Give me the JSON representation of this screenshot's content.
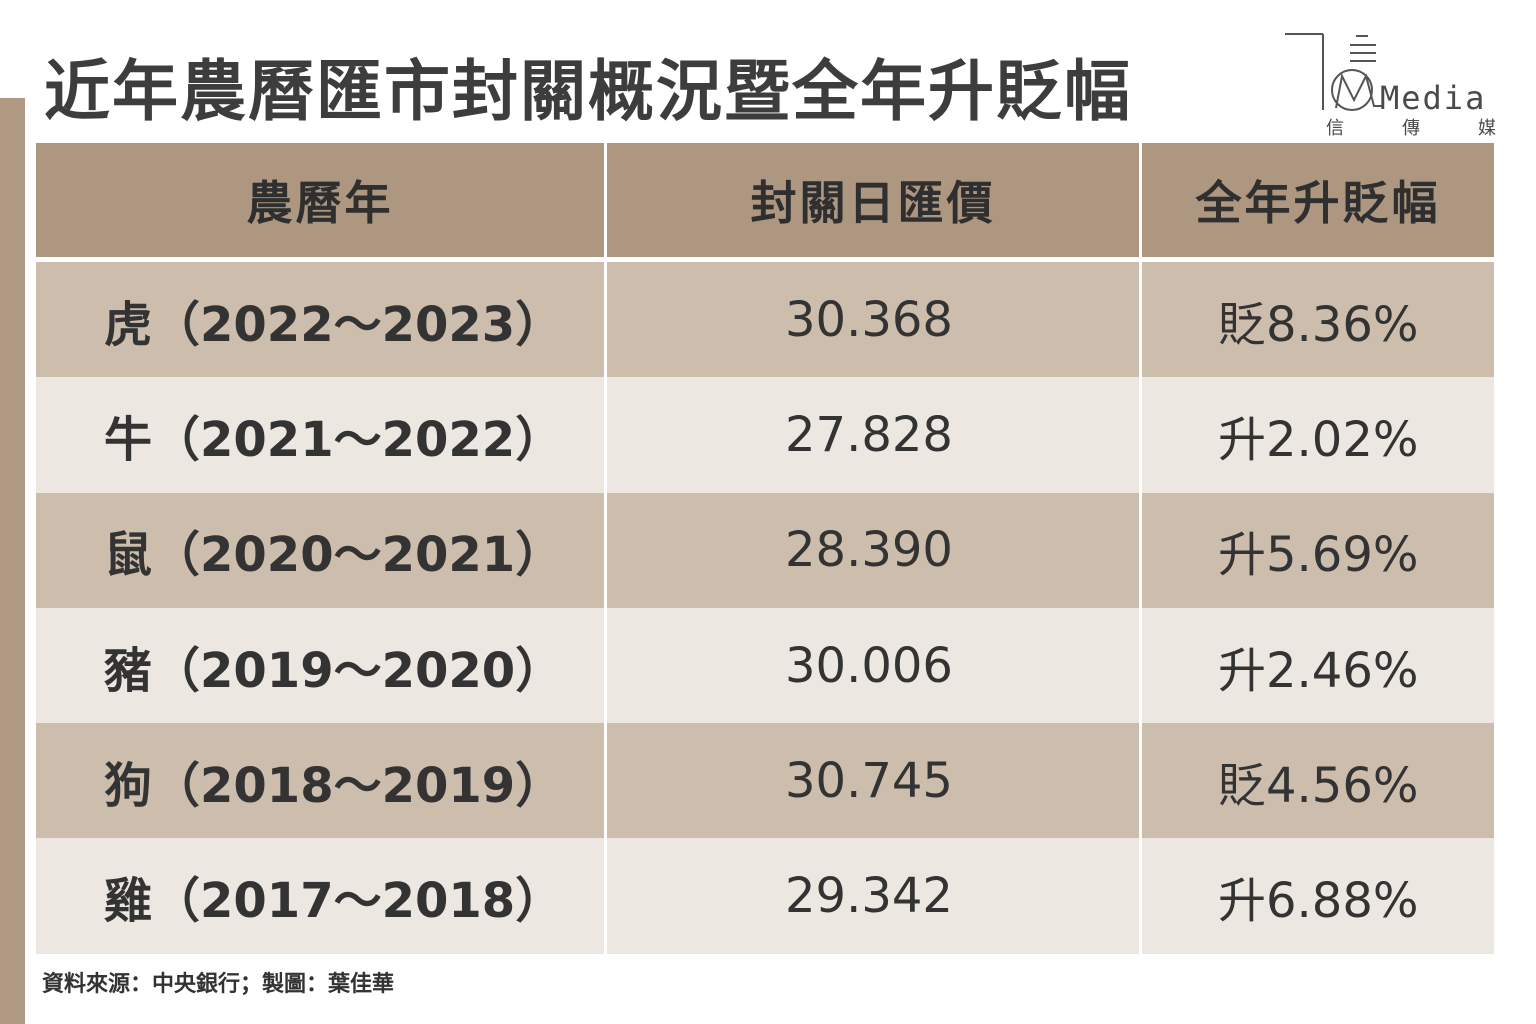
{
  "title": "近年農曆匯市封關概況暨全年升貶幅",
  "logo": {
    "word": "Media",
    "sub": [
      "信",
      "傳",
      "媒"
    ]
  },
  "table": {
    "headers": [
      "農曆年",
      "封關日匯價",
      "全年升貶幅"
    ],
    "rows": [
      {
        "year": "虎（2022～2023）",
        "rate": "30.368",
        "change": "貶8.36%"
      },
      {
        "year": "牛（2021～2022）",
        "rate": "27.828",
        "change": "升2.02%"
      },
      {
        "year": "鼠（2020～2021）",
        "rate": "28.390",
        "change": "升5.69%"
      },
      {
        "year": "豬（2019～2020）",
        "rate": "30.006",
        "change": "升2.46%"
      },
      {
        "year": "狗（2018～2019）",
        "rate": "30.745",
        "change": "貶4.56%"
      },
      {
        "year": "雞（2017～2018）",
        "rate": "29.342",
        "change": "升6.88%"
      }
    ]
  },
  "footer": "資料來源：中央銀行；製圖：葉佳華",
  "colors": {
    "header_bg": "#ad9781",
    "row_dark": "#cdbdac",
    "row_light": "#ede7e1",
    "accent_bar": "#b09a83"
  }
}
